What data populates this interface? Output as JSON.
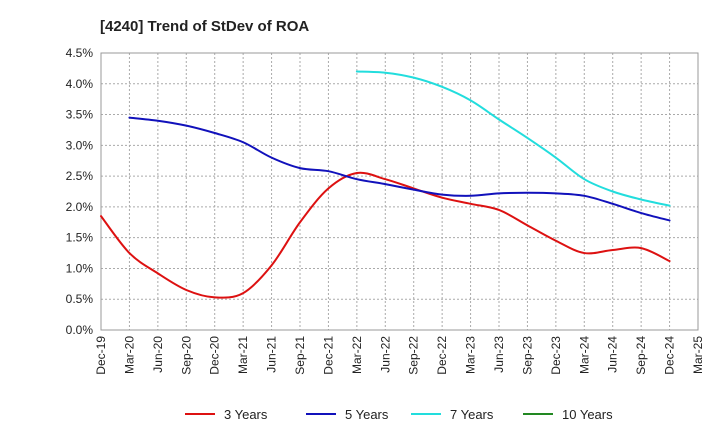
{
  "chart_data": {
    "type": "line",
    "title": "[4240]  Trend of StDev of ROA",
    "xlabel": "",
    "ylabel": "",
    "ylim": [
      0,
      4.5
    ],
    "y_ticks": [
      0,
      0.5,
      1.0,
      1.5,
      2.0,
      2.5,
      3.0,
      3.5,
      4.0,
      4.5
    ],
    "y_tick_labels": [
      "0.0%",
      "0.5%",
      "1.0%",
      "1.5%",
      "2.0%",
      "2.5%",
      "3.0%",
      "3.5%",
      "4.0%",
      "4.5%"
    ],
    "x_tick_labels": [
      "Dec-19",
      "Mar-20",
      "Jun-20",
      "Sep-20",
      "Dec-20",
      "Mar-21",
      "Jun-21",
      "Sep-21",
      "Dec-21",
      "Mar-22",
      "Jun-22",
      "Sep-22",
      "Dec-22",
      "Mar-23",
      "Jun-23",
      "Sep-23",
      "Dec-23",
      "Mar-24",
      "Jun-24",
      "Sep-24",
      "Dec-24",
      "Mar-25"
    ],
    "grid": true,
    "legend_position": "bottom",
    "series": [
      {
        "name": "3 Years",
        "color": "#dd1111",
        "start_index": 0,
        "values": [
          1.85,
          1.25,
          0.92,
          0.65,
          0.53,
          0.6,
          1.05,
          1.75,
          2.3,
          2.55,
          2.45,
          2.3,
          2.15,
          2.05,
          1.95,
          1.7,
          1.45,
          1.25,
          1.3,
          1.33,
          1.12
        ]
      },
      {
        "name": "5 Years",
        "color": "#1111bb",
        "start_index": 1,
        "values": [
          3.45,
          3.4,
          3.32,
          3.2,
          3.05,
          2.8,
          2.63,
          2.58,
          2.45,
          2.37,
          2.28,
          2.2,
          2.18,
          2.22,
          2.23,
          2.22,
          2.18,
          2.05,
          1.9,
          1.78
        ]
      },
      {
        "name": "7 Years",
        "color": "#22dddd",
        "start_index": 9,
        "values": [
          4.2,
          4.18,
          4.1,
          3.95,
          3.73,
          3.42,
          3.12,
          2.8,
          2.45,
          2.25,
          2.12,
          2.02
        ]
      },
      {
        "name": "10 Years",
        "color": "#228822",
        "start_index": 0,
        "values": []
      }
    ]
  }
}
